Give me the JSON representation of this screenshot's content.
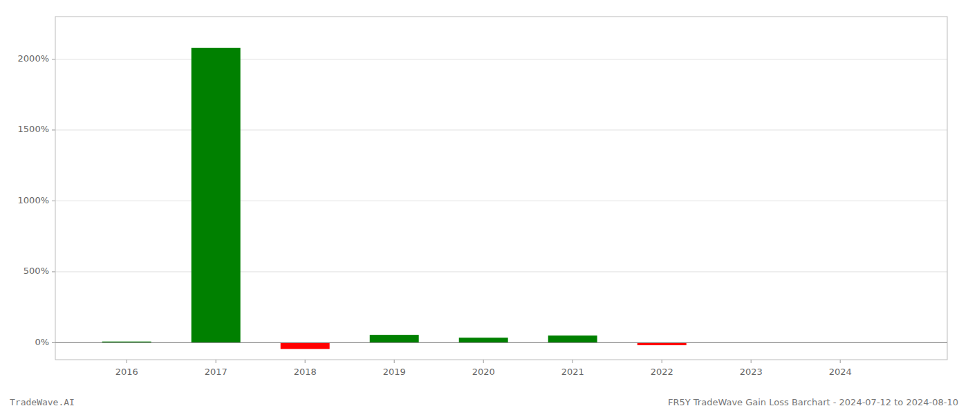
{
  "chart_data": {
    "type": "bar",
    "x": [
      2016,
      2017,
      2018,
      2019,
      2020,
      2021,
      2022,
      2023,
      2024
    ],
    "values": [
      8.0,
      2080.0,
      -45.0,
      55.0,
      35.0,
      50.0,
      -18.0,
      0.0,
      0.0
    ],
    "colors": [
      "#008000",
      "#008000",
      "#ff0000",
      "#008000",
      "#008000",
      "#008000",
      "#ff0000",
      "#008000",
      "#008000"
    ],
    "xlim": [
      2015.2,
      2025.2
    ],
    "xticks": [
      2016,
      2017,
      2018,
      2019,
      2020,
      2021,
      2022,
      2023,
      2024
    ],
    "ylim": [
      -120,
      2300
    ],
    "yticks": [
      {
        "value": 0,
        "label": "0%"
      },
      {
        "value": 500,
        "label": "500%"
      },
      {
        "value": 1000,
        "label": "1000%"
      },
      {
        "value": 1500,
        "label": "1500%"
      },
      {
        "value": 2000,
        "label": "2000%"
      }
    ],
    "grid": true,
    "annotations": [
      "TradeWave.AI",
      "FR5Y TradeWave Gain Loss Barchart - 2024-07-12 to 2024-08-10"
    ]
  }
}
